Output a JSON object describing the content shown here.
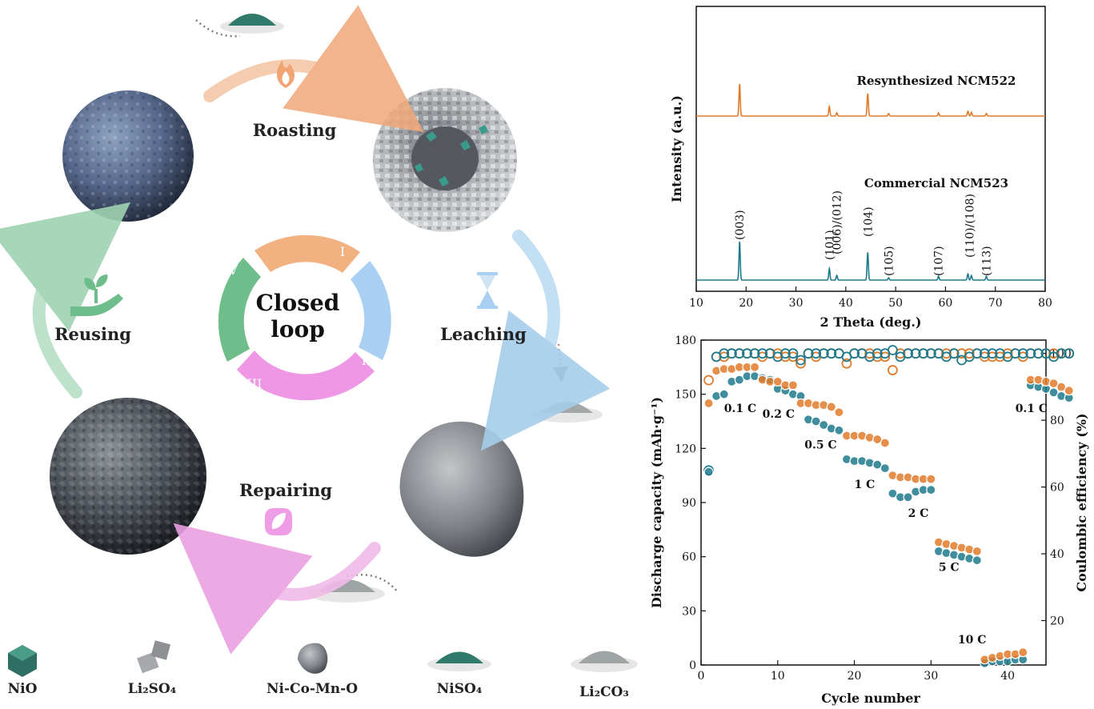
{
  "cycle": {
    "center_line1": "Closed",
    "center_line2": "loop",
    "segments": [
      {
        "numeral": "I",
        "color": "#f2b181"
      },
      {
        "numeral": "II",
        "color": "#a9d0f2"
      },
      {
        "numeral": "III",
        "color": "#ee97e4"
      },
      {
        "numeral": "IV",
        "color": "#6fbd8a"
      }
    ],
    "steps": [
      "Roasting",
      "Leaching",
      "Repairing",
      "Reusing"
    ],
    "icons": [
      "flame-icon",
      "hourglass-icon",
      "leaf-icon",
      "hand-sprout-icon"
    ]
  },
  "legend": [
    {
      "label": "NiO",
      "icon": "nio-crystal-icon"
    },
    {
      "label": "Li₂SO₄",
      "icon": "li2so4-cubes-icon"
    },
    {
      "label": "Ni-Co-Mn-O",
      "icon": "nicomno-rock-icon"
    },
    {
      "label": "NiSO₄",
      "icon": "niso4-powder-icon"
    },
    {
      "label": "Li₂CO₃",
      "icon": "li2co3-powder-icon"
    }
  ],
  "chart_data": [
    {
      "type": "line",
      "xlabel": "2 Theta (deg.)",
      "ylabel": "Intensity (a.u.)",
      "xlim": [
        10,
        80
      ],
      "xticks": [
        10,
        20,
        30,
        40,
        50,
        60,
        70,
        80
      ],
      "series": [
        {
          "name": "Resynthesized NCM522",
          "color": "#e07b2a",
          "peaks": [
            [
              18.7,
              1.0
            ],
            [
              36.7,
              0.3
            ],
            [
              38.2,
              0.1
            ],
            [
              44.4,
              0.7
            ],
            [
              48.6,
              0.08
            ],
            [
              58.6,
              0.1
            ],
            [
              64.5,
              0.15
            ],
            [
              65.2,
              0.12
            ],
            [
              68.2,
              0.08
            ]
          ]
        },
        {
          "name": "Commercial NCM523",
          "color": "#1f7a8c",
          "peaks": [
            [
              18.7,
              1.0
            ],
            [
              36.7,
              0.3
            ],
            [
              38.2,
              0.12
            ],
            [
              44.4,
              0.72
            ],
            [
              48.6,
              0.06
            ],
            [
              58.6,
              0.1
            ],
            [
              64.5,
              0.16
            ],
            [
              65.2,
              0.12
            ],
            [
              68.2,
              0.1
            ]
          ]
        }
      ],
      "annotations": [
        {
          "text": "(003)",
          "x": 18.7
        },
        {
          "text": "(101)",
          "x": 36.7
        },
        {
          "text": "(006)/(012)",
          "x": 38.2
        },
        {
          "text": "(104)",
          "x": 44.4
        },
        {
          "text": "(105)",
          "x": 48.6
        },
        {
          "text": "(107)",
          "x": 58.6
        },
        {
          "text": "(110)/(108)",
          "x": 64.8
        },
        {
          "text": "(113)",
          "x": 68.2
        }
      ]
    },
    {
      "type": "scatter",
      "xlabel": "Cycle number",
      "ylabel": "Discharge capacity (mAh·g⁻¹)",
      "y2label": "Coulombic efficiency (%)",
      "xlim": [
        0,
        45
      ],
      "ylim": [
        0,
        180
      ],
      "y2lim": [
        6.7,
        104
      ],
      "xticks": [
        0,
        10,
        20,
        30,
        40
      ],
      "yticks": [
        0,
        30,
        60,
        90,
        120,
        150,
        180
      ],
      "y2ticks": [
        20,
        40,
        60,
        80,
        100
      ],
      "series": [
        {
          "name": "Resynthesized NCM522",
          "color": "#e07b2a",
          "capacity": [
            145,
            163,
            164,
            164,
            165,
            165,
            165,
            158,
            157,
            157,
            155,
            155,
            145,
            145,
            144,
            144,
            143,
            140,
            127,
            127,
            127,
            126,
            125,
            123,
            105,
            104,
            104,
            103,
            103,
            103,
            68,
            67,
            66,
            65,
            64,
            63,
            3,
            4,
            5,
            6,
            6,
            7,
            158,
            158,
            157,
            156,
            154,
            152
          ],
          "efficiency": [
            92,
            99,
            99,
            100,
            100,
            100,
            100,
            99,
            100,
            100,
            99,
            99,
            97,
            100,
            99,
            100,
            100,
            100,
            97,
            100,
            100,
            100,
            99,
            99,
            95,
            100,
            100,
            100,
            100,
            100,
            100,
            100,
            100,
            100,
            100,
            100,
            99,
            99,
            99,
            100,
            100,
            99,
            100,
            100,
            100,
            100,
            100,
            100
          ]
        },
        {
          "name": "Commercial NCM523",
          "color": "#1f7a8c",
          "capacity": [
            107,
            149,
            150,
            157,
            158,
            160,
            160,
            159,
            158,
            153,
            152,
            150,
            149,
            136,
            135,
            133,
            131,
            130,
            114,
            113,
            113,
            112,
            111,
            109,
            95,
            93,
            93,
            96,
            97,
            97,
            63,
            62,
            61,
            60,
            59,
            58,
            1,
            2,
            2,
            2,
            3,
            3,
            155,
            154,
            153,
            151,
            149,
            148
          ],
          "efficiency": [
            65,
            99,
            100,
            100,
            100,
            100,
            100,
            100,
            100,
            99,
            100,
            100,
            98,
            100,
            100,
            100,
            100,
            100,
            99,
            100,
            100,
            99,
            100,
            100,
            101,
            99,
            100,
            100,
            100,
            100,
            100,
            99,
            100,
            98,
            99,
            100,
            100,
            100,
            100,
            99,
            100,
            100,
            100,
            100,
            100,
            99,
            100,
            100
          ]
        }
      ],
      "annotations": [
        {
          "text": "0.1 C",
          "x": 3,
          "y": 140
        },
        {
          "text": "0.2 C",
          "x": 8,
          "y": 137
        },
        {
          "text": "0.5 C",
          "x": 13.5,
          "y": 120
        },
        {
          "text": "1 C",
          "x": 20,
          "y": 98
        },
        {
          "text": "2 C",
          "x": 27,
          "y": 82
        },
        {
          "text": "5 C",
          "x": 31,
          "y": 52
        },
        {
          "text": "10 C",
          "x": 33.5,
          "y": 12
        },
        {
          "text": "0.1 C",
          "x": 41,
          "y": 140
        }
      ]
    }
  ]
}
